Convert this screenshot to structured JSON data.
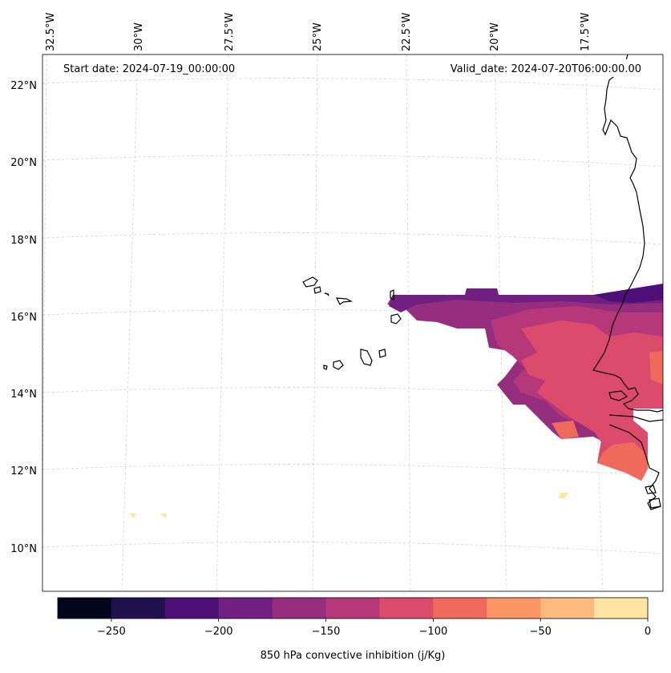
{
  "map": {
    "start_date": "Start date: 2024-07-19_00:00:00",
    "valid_date": "Valid_date: 2024-07-20T06:00:00.00",
    "lon_labels": [
      "32.5°W",
      "30°W",
      "27.5°W",
      "25°W",
      "22.5°W",
      "20°W",
      "17.5°W"
    ],
    "lat_labels": [
      "22°N",
      "20°N",
      "18°N",
      "16°N",
      "14°N",
      "12°N",
      "10°N"
    ]
  },
  "colorbar": {
    "label": "850 hPa convective inhibition (j/Kg)",
    "ticks": [
      "−250",
      "−200",
      "−150",
      "−100",
      "−50",
      "0"
    ],
    "colors": [
      "#03051a",
      "#221150",
      "#4e0f79",
      "#711f81",
      "#962d7f",
      "#b6387a",
      "#dc4b6b",
      "#f06a5c",
      "#fb9565",
      "#feb97e",
      "#fde4a3"
    ]
  }
}
